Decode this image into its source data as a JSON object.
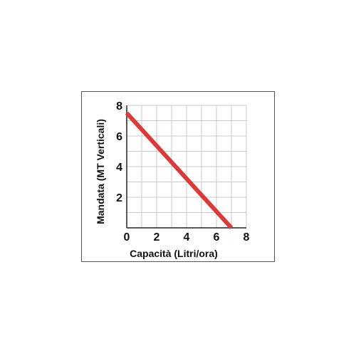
{
  "chart_data": {
    "type": "line",
    "xlabel": "Capacità (Litri/ora)",
    "ylabel": "Mandata (MT Verticali)",
    "xlim": [
      0,
      8
    ],
    "ylim": [
      0,
      8
    ],
    "x_ticks": [
      "0",
      "2",
      "4",
      "6",
      "8"
    ],
    "y_ticks": [
      "2",
      "4",
      "6",
      "8"
    ],
    "grid": true,
    "series": [
      {
        "x": [
          0,
          7
        ],
        "y": [
          7.5,
          0
        ],
        "color": "#d93a3a"
      }
    ]
  }
}
